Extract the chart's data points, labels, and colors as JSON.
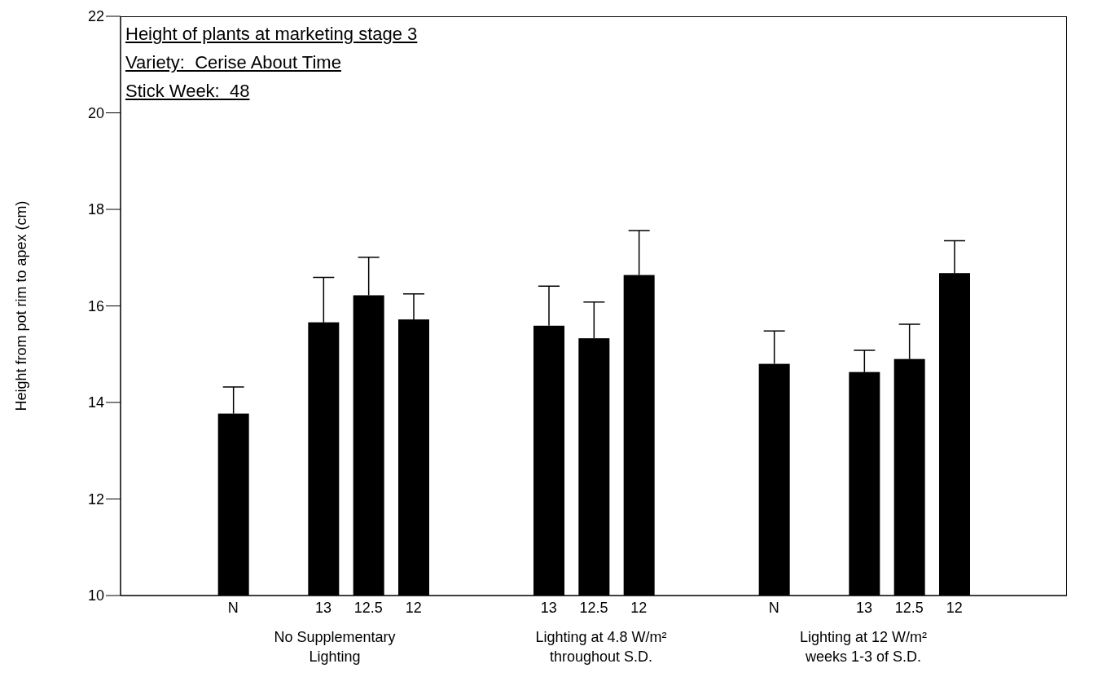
{
  "chart_data": {
    "type": "bar",
    "title": "Height of plants at marketing stage 3",
    "subtitle": "Variety:  Cerise About Time",
    "ylabel": "Height from pot rim to apex (cm)",
    "annotations": [
      "Stick Week:  48",
      "No Supplementary Lighting",
      "Lighting at 4.8 W/m² throughout S.D.",
      "Lighting at 12 W/m² weeks 1-3 of S.D."
    ],
    "categories": [
      null,
      null,
      "N",
      null,
      "13",
      "12.5",
      "12",
      null,
      null,
      "13",
      "12.5",
      "12",
      null,
      null,
      "N",
      null,
      "13",
      "12.5",
      "12",
      null,
      null
    ],
    "values": [
      null,
      null,
      13.77,
      null,
      15.66,
      16.22,
      15.72,
      null,
      null,
      15.59,
      15.33,
      16.64,
      null,
      null,
      14.8,
      null,
      14.63,
      14.9,
      16.68,
      null,
      null
    ],
    "errors": [
      null,
      null,
      [
        13.77,
        14.32
      ],
      null,
      [
        15.66,
        16.59
      ],
      [
        16.22,
        17.01
      ],
      [
        15.72,
        16.25
      ],
      null,
      null,
      [
        15.59,
        16.41
      ],
      [
        15.33,
        16.08
      ],
      [
        16.64,
        17.56
      ],
      null,
      null,
      [
        14.8,
        15.48
      ],
      null,
      [
        14.63,
        15.08
      ],
      [
        14.9,
        15.62
      ],
      [
        16.68,
        17.35
      ],
      null,
      null
    ],
    "color": "#000000",
    "ylim": [
      10,
      22
    ],
    "yticks": [
      10,
      12,
      14,
      16,
      18,
      20,
      22
    ],
    "grid": false,
    "legend": false
  }
}
